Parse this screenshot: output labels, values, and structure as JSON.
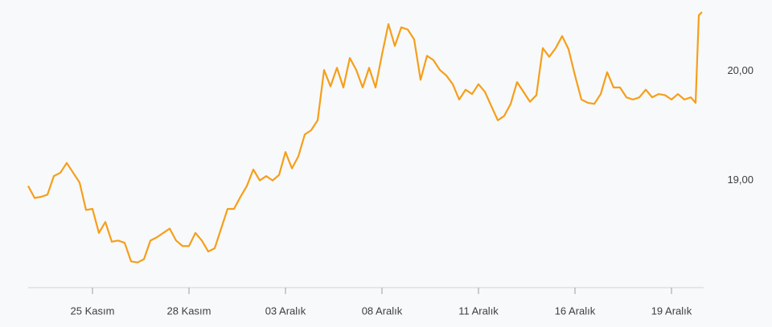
{
  "chart_data": {
    "type": "line",
    "color": "#f59f1a",
    "grid": false,
    "xlim": [
      0,
      21
    ],
    "ylim": [
      18.02,
      20.65
    ],
    "xticks": [
      {
        "value": 2,
        "label": "25 Kasım"
      },
      {
        "value": 5,
        "label": "28 Kasım"
      },
      {
        "value": 8,
        "label": "03 Aralık"
      },
      {
        "value": 11,
        "label": "08 Aralık"
      },
      {
        "value": 14,
        "label": "11 Aralık"
      },
      {
        "value": 17,
        "label": "16 Aralık"
      },
      {
        "value": 20,
        "label": "19 Aralık"
      }
    ],
    "yticks": [
      {
        "value": 19,
        "label": "19,00"
      },
      {
        "value": 20,
        "label": "20,00"
      }
    ],
    "x": [
      0,
      0.2,
      0.4,
      0.6,
      0.8,
      1,
      1.2,
      1.4,
      1.6,
      1.8,
      2,
      2.2,
      2.4,
      2.6,
      2.8,
      3,
      3.2,
      3.4,
      3.6,
      3.8,
      4,
      4.2,
      4.4,
      4.6,
      4.8,
      5,
      5.2,
      5.4,
      5.6,
      5.8,
      6,
      6.2,
      6.4,
      6.6,
      6.8,
      7,
      7.2,
      7.4,
      7.6,
      7.8,
      8,
      8.2,
      8.4,
      8.6,
      8.8,
      9,
      9.2,
      9.4,
      9.6,
      9.8,
      10,
      10.2,
      10.4,
      10.6,
      10.8,
      11,
      11.2,
      11.4,
      11.6,
      11.8,
      12,
      12.2,
      12.4,
      12.6,
      12.8,
      13,
      13.2,
      13.4,
      13.6,
      13.8,
      14,
      14.2,
      14.4,
      14.6,
      14.8,
      15,
      15.2,
      15.4,
      15.6,
      15.8,
      16,
      16.2,
      16.4,
      16.6,
      16.8,
      17,
      17.2,
      17.4,
      17.6,
      17.8,
      18,
      18.2,
      18.4,
      18.6,
      18.8,
      19,
      19.2,
      19.4,
      19.6,
      19.8,
      20,
      20.2,
      20.4,
      20.6,
      20.75,
      20.85,
      20.95
    ],
    "values": [
      18.95,
      18.84,
      18.85,
      18.87,
      19.04,
      19.07,
      19.16,
      19.07,
      18.98,
      18.73,
      18.74,
      18.52,
      18.62,
      18.44,
      18.45,
      18.43,
      18.26,
      18.25,
      18.28,
      18.45,
      18.48,
      18.52,
      18.56,
      18.45,
      18.4,
      18.4,
      18.52,
      18.45,
      18.35,
      18.38,
      18.56,
      18.74,
      18.74,
      18.85,
      18.95,
      19.1,
      19.0,
      19.04,
      19.0,
      19.05,
      19.26,
      19.11,
      19.22,
      19.42,
      19.46,
      19.55,
      20.01,
      19.86,
      20.03,
      19.85,
      20.12,
      20.01,
      19.85,
      20.03,
      19.85,
      20.15,
      20.43,
      20.23,
      20.4,
      20.38,
      20.29,
      19.92,
      20.14,
      20.1,
      20.01,
      19.96,
      19.88,
      19.74,
      19.83,
      19.79,
      19.88,
      19.81,
      19.68,
      19.55,
      19.59,
      19.7,
      19.9,
      19.81,
      19.72,
      19.78,
      20.21,
      20.13,
      20.21,
      20.32,
      20.2,
      19.96,
      19.74,
      19.71,
      19.7,
      19.79,
      19.99,
      19.85,
      19.85,
      19.76,
      19.74,
      19.76,
      19.83,
      19.76,
      19.79,
      19.78,
      19.74,
      19.79,
      19.74,
      19.76,
      19.71,
      20.51,
      20.54
    ]
  }
}
